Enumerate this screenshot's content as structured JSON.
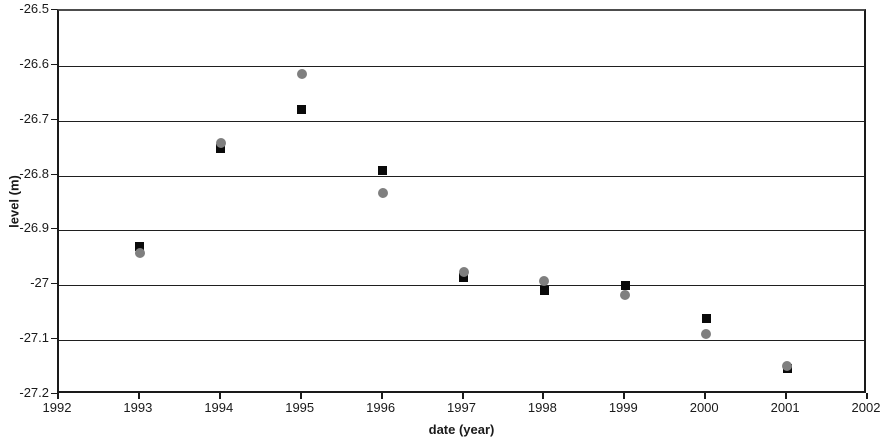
{
  "chart_data": {
    "type": "scatter",
    "title": "",
    "xlabel": "date (year)",
    "ylabel": "level (m)",
    "xlim": [
      1992,
      2002
    ],
    "ylim": [
      -27.2,
      -26.5
    ],
    "x_ticks": [
      1992,
      1993,
      1994,
      1995,
      1996,
      1997,
      1998,
      1999,
      2000,
      2001,
      2002
    ],
    "x_tick_labels": [
      "1992",
      "1993",
      "1994",
      "1995",
      "1996",
      "1997",
      "1998",
      "1999",
      "2000",
      "2001",
      "2002"
    ],
    "y_ticks": [
      -26.5,
      -26.6,
      -26.7,
      -26.8,
      -26.9,
      -27,
      -27.1,
      -27.2
    ],
    "y_tick_labels": [
      "-26.5",
      "-26.6",
      "-26.7",
      "-26.8",
      "-26.9",
      "-27",
      "-27.1",
      "-27.2"
    ],
    "grid": "horizontal-only",
    "legend": "none",
    "x": [
      1993,
      1994,
      1995,
      1996,
      1997,
      1998,
      1999,
      2000,
      2001
    ],
    "series": [
      {
        "name": "black-square-series",
        "marker": "square",
        "color": "#0a0a0a",
        "values": [
          -26.93,
          -26.75,
          -26.68,
          -26.79,
          -26.985,
          -27.01,
          -27.0,
          -27.06,
          -27.152
        ]
      },
      {
        "name": "gray-circle-series",
        "marker": "circle",
        "color": "#7f7f7f",
        "values": [
          -26.942,
          -26.74,
          -26.615,
          -26.832,
          -26.975,
          -26.992,
          -27.018,
          -27.088,
          -27.148
        ]
      }
    ]
  },
  "colors": {
    "background": "#ffffff",
    "axis": "#1a1a1a",
    "gridline": "#1f1f1f",
    "text": "#1a1a1a",
    "square_marker": "#0a0a0a",
    "circle_marker": "#7f7f7f"
  }
}
